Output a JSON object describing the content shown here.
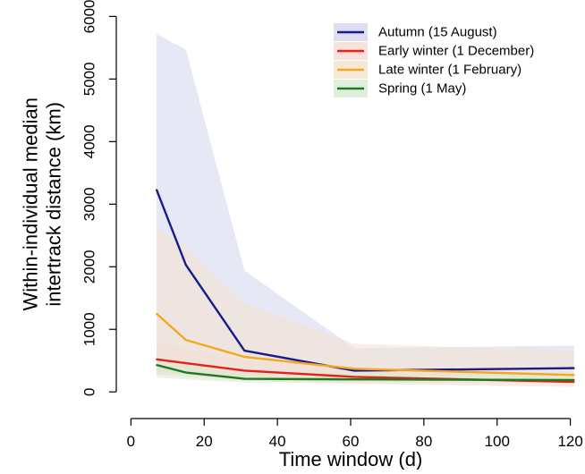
{
  "chart_data": {
    "type": "line",
    "xlabel": "Time window (d)",
    "ylabel_lines": [
      "Within-individual median",
      "intertrack distance (km)"
    ],
    "xlim": [
      -4,
      124
    ],
    "ylim": [
      -240,
      6120
    ],
    "xticks": [
      0,
      20,
      40,
      60,
      80,
      100,
      120
    ],
    "yticks": [
      0,
      1000,
      2000,
      3000,
      4000,
      5000,
      6000
    ],
    "x": [
      7,
      15,
      31,
      61,
      121
    ],
    "legend_position": "top-right",
    "grid": false,
    "series": [
      {
        "name": "Autumn (15 August)",
        "color": "#1a1a8c",
        "band_color": "#d4d6ee",
        "values": [
          3230,
          2030,
          660,
          340,
          380
        ],
        "band_low": [
          300,
          280,
          250,
          250,
          260
        ],
        "band_high": [
          5720,
          5470,
          1940,
          700,
          740
        ]
      },
      {
        "name": "Early winter (1 December)",
        "color": "#e8201a",
        "band_color": "#f6d8d2",
        "values": [
          520,
          460,
          340,
          240,
          160
        ],
        "band_low": [
          280,
          240,
          180,
          130,
          80
        ],
        "band_high": [
          780,
          690,
          500,
          400,
          290
        ]
      },
      {
        "name": "Late winter (1 February)",
        "color": "#f5a71c",
        "band_color": "#f4e2cf",
        "values": [
          1250,
          830,
          560,
          370,
          270
        ],
        "band_low": [
          310,
          280,
          240,
          210,
          170
        ],
        "band_high": [
          2620,
          2330,
          1420,
          770,
          660
        ]
      },
      {
        "name": "Spring (1 May)",
        "color": "#1c7a1c",
        "band_color": "#d8ead4",
        "values": [
          430,
          310,
          210,
          200,
          190
        ],
        "band_low": [
          230,
          200,
          150,
          150,
          150
        ],
        "band_high": [
          600,
          440,
          310,
          300,
          280
        ]
      }
    ]
  }
}
